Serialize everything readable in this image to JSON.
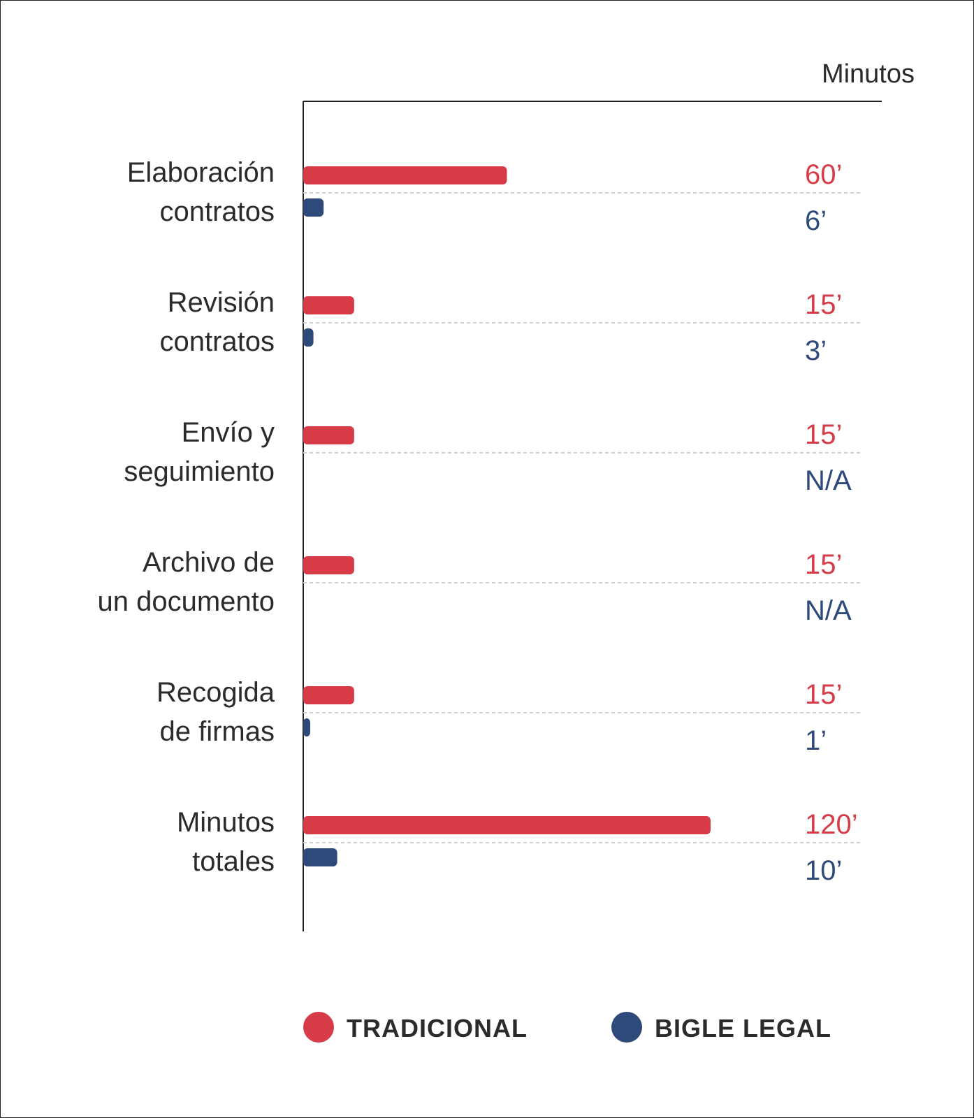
{
  "chart_data": {
    "type": "bar",
    "orientation": "horizontal",
    "unit_label": "Minutos",
    "categories": [
      [
        "Elaboración",
        "contratos"
      ],
      [
        "Revisión",
        "contratos"
      ],
      [
        "Envío y",
        "seguimiento"
      ],
      [
        "Archivo de",
        "un documento"
      ],
      [
        "Recogida",
        "de firmas"
      ],
      [
        "Minutos",
        "totales"
      ]
    ],
    "series": [
      {
        "name": "TRADICIONAL",
        "color": "#d63b47",
        "values": [
          60,
          15,
          15,
          15,
          15,
          120
        ],
        "labels": [
          "60’",
          "15’",
          "15’",
          "15’",
          "15’",
          "120’"
        ]
      },
      {
        "name": "BIGLE LEGAL",
        "color": "#2e4a7a",
        "values": [
          6,
          3,
          null,
          null,
          1,
          10
        ],
        "labels": [
          "6’",
          "3’",
          "N/A",
          "N/A",
          "1’",
          "10’"
        ]
      }
    ],
    "xlim": [
      0,
      120
    ],
    "legend_position": "bottom"
  }
}
